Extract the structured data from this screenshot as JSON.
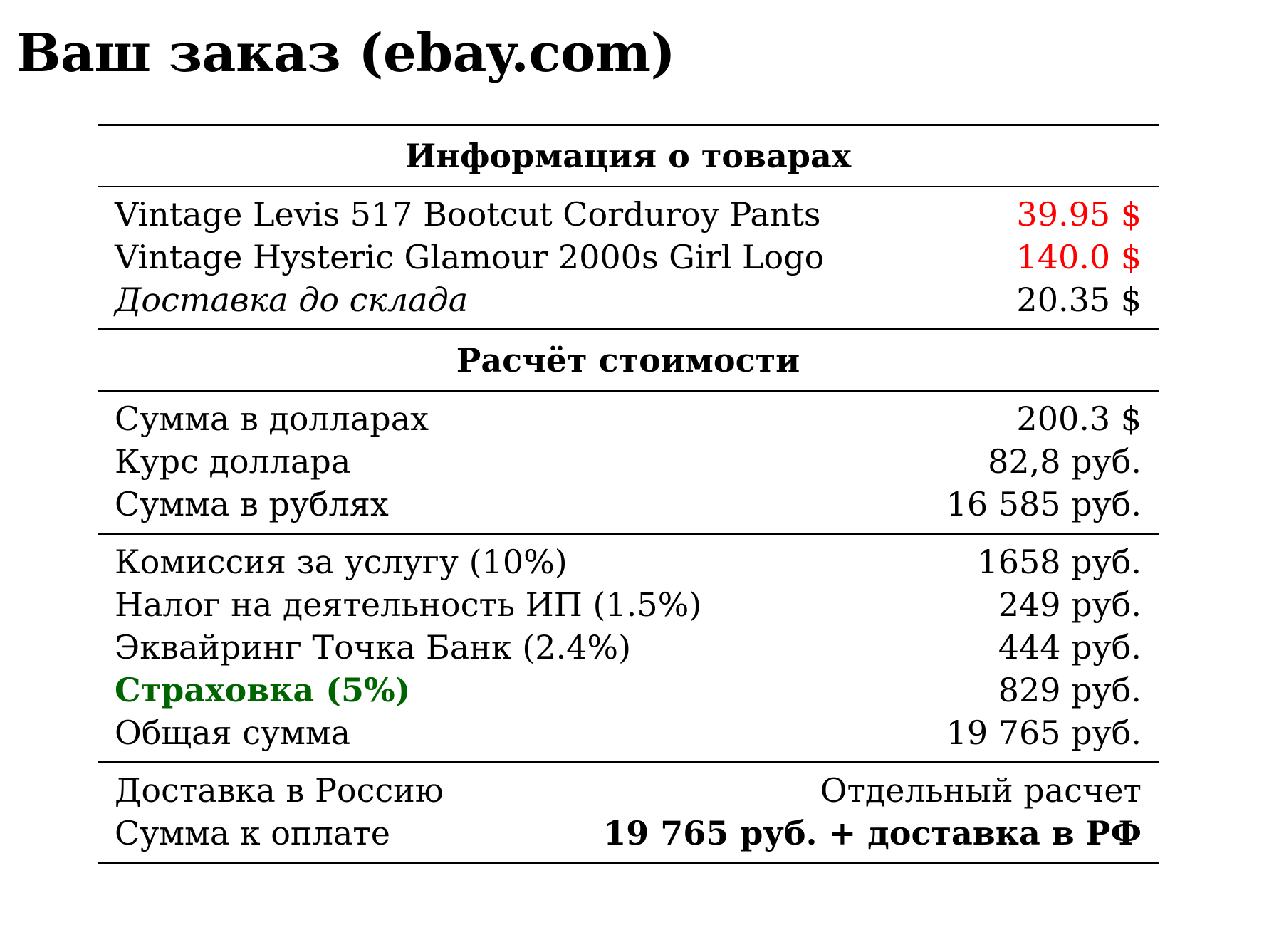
{
  "title": "Ваш заказ (ebay.com)",
  "colors": {
    "item_price": "#ff0000",
    "insurance": "#006400",
    "text": "#000000"
  },
  "items_section": {
    "header": "Информация о товарах",
    "rows": [
      {
        "label": "Vintage Levis 517 Bootcut Corduroy Pants",
        "value": "39.95 $"
      },
      {
        "label": "Vintage Hysteric Glamour 2000s Girl Logo",
        "value": "140.0 $"
      },
      {
        "label": "Доставка до склада",
        "value": "20.35 $"
      }
    ]
  },
  "calc_section": {
    "header": "Расчёт стоимости",
    "conversion_rows": [
      {
        "label": "Сумма в долларах",
        "value": "200.3 $"
      },
      {
        "label": "Курс доллара",
        "value": "82,8 руб."
      },
      {
        "label": "Сумма в рублях",
        "value": "16 585 руб."
      }
    ],
    "fee_rows": [
      {
        "label": "Комиссия за услугу (10%)",
        "value": "1658 руб."
      },
      {
        "label": "Налог на деятельность ИП (1.5%)",
        "value": "249 руб."
      },
      {
        "label": "Эквайринг Точка Банк (2.4%)",
        "value": "444 руб."
      },
      {
        "label": "Страховка (5%)",
        "value": "829 руб."
      },
      {
        "label": "Общая сумма",
        "value": "19 765 руб."
      }
    ],
    "final_rows": [
      {
        "label": "Доставка в Россию",
        "value": "Отдельный расчет"
      },
      {
        "label": "Сумма к оплате",
        "value": "19 765 руб. + доставка в РФ"
      }
    ]
  }
}
